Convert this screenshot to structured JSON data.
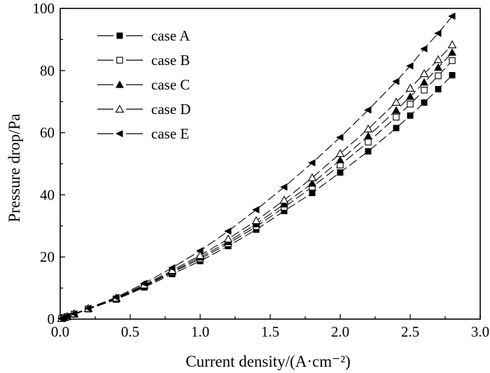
{
  "chart_data": {
    "type": "line",
    "xlabel": "Current density/(A·cm⁻²)",
    "ylabel": "Pressure drop/Pa",
    "xlim": [
      0,
      3
    ],
    "ylim": [
      0,
      100
    ],
    "xticks": [
      0,
      0.5,
      1,
      1.5,
      2,
      2.5,
      3
    ],
    "xtick_labels": [
      "0.0",
      "0.5",
      "1.0",
      "1.5",
      "2.0",
      "2.5",
      "3.0"
    ],
    "yticks": [
      0,
      20,
      40,
      60,
      80,
      100
    ],
    "ytick_labels": [
      "0",
      "20",
      "40",
      "60",
      "80",
      "100"
    ],
    "grid": false,
    "legend_position": "top-left",
    "x": [
      0.01,
      0.03,
      0.05,
      0.1,
      0.2,
      0.4,
      0.6,
      0.8,
      1.0,
      1.2,
      1.4,
      1.6,
      1.8,
      2.0,
      2.2,
      2.4,
      2.5,
      2.6,
      2.7,
      2.8
    ],
    "series": [
      {
        "name": "case A",
        "marker": "filled-square",
        "values": [
          0.2,
          0.5,
          0.8,
          1.5,
          3.2,
          6.3,
          10.2,
          14.5,
          18.7,
          23.5,
          28.8,
          34.8,
          40.6,
          47.2,
          54.0,
          61.5,
          65.5,
          69.7,
          74.0,
          78.5
        ]
      },
      {
        "name": "case B",
        "marker": "open-square",
        "values": [
          0.2,
          0.5,
          0.8,
          1.6,
          3.3,
          6.5,
          10.5,
          15.0,
          19.4,
          24.3,
          29.8,
          36.0,
          42.5,
          49.6,
          57.0,
          65.0,
          69.2,
          73.7,
          78.3,
          83.2
        ]
      },
      {
        "name": "case C",
        "marker": "filled-triangle-up",
        "values": [
          0.2,
          0.5,
          0.8,
          1.6,
          3.3,
          6.6,
          10.7,
          15.3,
          19.9,
          24.9,
          30.6,
          37.0,
          43.7,
          51.2,
          58.9,
          67.2,
          71.6,
          76.2,
          81.0,
          85.8
        ]
      },
      {
        "name": "case D",
        "marker": "open-triangle-up",
        "values": [
          0.2,
          0.5,
          0.8,
          1.7,
          3.4,
          6.8,
          11.0,
          15.7,
          20.5,
          25.8,
          31.7,
          38.3,
          45.5,
          53.3,
          61.2,
          69.8,
          74.3,
          79.0,
          83.5,
          88.3
        ]
      },
      {
        "name": "case E",
        "marker": "filled-triangle-left",
        "values": [
          0.2,
          0.5,
          0.9,
          1.7,
          3.5,
          7.0,
          11.5,
          16.5,
          22.0,
          28.3,
          35.2,
          42.5,
          50.3,
          58.5,
          67.3,
          76.5,
          81.5,
          87.0,
          92.0,
          97.5
        ]
      }
    ]
  }
}
